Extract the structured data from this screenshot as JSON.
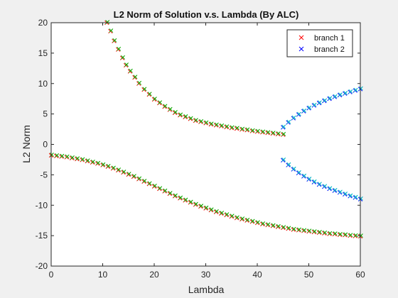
{
  "chart_data": {
    "type": "scatter",
    "title": "L2 Norm of Solution v.s. Lambda (By ALC)",
    "xlabel": "Lambda",
    "ylabel": "L2 Norm",
    "xlim": [
      0,
      60
    ],
    "ylim": [
      -20,
      20
    ],
    "xticks": [
      0,
      10,
      20,
      30,
      40,
      50,
      60
    ],
    "yticks": [
      -20,
      -15,
      -10,
      -5,
      0,
      5,
      10,
      15,
      20
    ],
    "grid": false,
    "legend_position": "top-right",
    "marker": "x",
    "series": [
      {
        "name": "branch 1",
        "color": "#ff0000",
        "overlay_color": "#00b000",
        "segments": [
          {
            "x": [
              10.8,
              11.5,
              12.2,
              13,
              13.8,
              14.5,
              15.3,
              16.2,
              17,
              18,
              19,
              20,
              21,
              22,
              23,
              24,
              25,
              26,
              27,
              28,
              29,
              30,
              31,
              32,
              33,
              34,
              35,
              36,
              37,
              38,
              39,
              40,
              41,
              42,
              43,
              44,
              45
            ],
            "y": [
              20,
              18.6,
              17,
              15.6,
              14.2,
              13,
              12,
              11,
              10,
              9,
              8.2,
              7.4,
              6.8,
              6.2,
              5.7,
              5.2,
              4.8,
              4.5,
              4.2,
              3.9,
              3.7,
              3.5,
              3.3,
              3.15,
              3,
              2.85,
              2.7,
              2.6,
              2.45,
              2.35,
              2.2,
              2.1,
              2,
              1.9,
              1.8,
              1.7,
              1.6
            ]
          },
          {
            "x": [
              0,
              1,
              2,
              3,
              4,
              5,
              6,
              7,
              8,
              9,
              10,
              11,
              12,
              13,
              14,
              15,
              16,
              17,
              18,
              19,
              20,
              21,
              22,
              23,
              24,
              25,
              26,
              27,
              28,
              29,
              30,
              31,
              32,
              33,
              34,
              35,
              36,
              37,
              38,
              39,
              40,
              41,
              42,
              43,
              44,
              45,
              46,
              47,
              48,
              49,
              50,
              51,
              52,
              53,
              54,
              55,
              56,
              57,
              58,
              59,
              60
            ],
            "y": [
              -1.8,
              -1.9,
              -2,
              -2.1,
              -2.25,
              -2.4,
              -2.55,
              -2.75,
              -2.95,
              -3.15,
              -3.4,
              -3.65,
              -3.95,
              -4.25,
              -4.6,
              -4.95,
              -5.3,
              -5.7,
              -6.1,
              -6.5,
              -6.9,
              -7.3,
              -7.7,
              -8.1,
              -8.5,
              -8.85,
              -9.2,
              -9.55,
              -9.9,
              -10.2,
              -10.5,
              -10.8,
              -11.1,
              -11.35,
              -11.6,
              -11.85,
              -12.1,
              -12.3,
              -12.5,
              -12.7,
              -12.9,
              -13.1,
              -13.25,
              -13.4,
              -13.55,
              -13.7,
              -13.85,
              -14,
              -14.1,
              -14.2,
              -14.3,
              -14.4,
              -14.5,
              -14.6,
              -14.7,
              -14.75,
              -14.85,
              -14.9,
              -15,
              -15.05,
              -15.1
            ]
          }
        ]
      },
      {
        "name": "branch 2",
        "color": "#0000ff",
        "overlay_color": "#00c0c0",
        "segments": [
          {
            "x": [
              45,
              46,
              47,
              48,
              49,
              50,
              51,
              52,
              53,
              54,
              55,
              56,
              57,
              58,
              59,
              60
            ],
            "y": [
              2.8,
              3.6,
              4.3,
              4.9,
              5.45,
              5.95,
              6.4,
              6.8,
              7.15,
              7.5,
              7.8,
              8.1,
              8.35,
              8.6,
              8.85,
              9.1
            ]
          },
          {
            "x": [
              45,
              46,
              47,
              48,
              49,
              50,
              51,
              52,
              53,
              54,
              55,
              56,
              57,
              58,
              59,
              60
            ],
            "y": [
              -2.6,
              -3.4,
              -4.1,
              -4.7,
              -5.25,
              -5.75,
              -6.2,
              -6.6,
              -6.95,
              -7.3,
              -7.6,
              -7.9,
              -8.2,
              -8.5,
              -8.75,
              -9
            ]
          }
        ]
      }
    ]
  }
}
